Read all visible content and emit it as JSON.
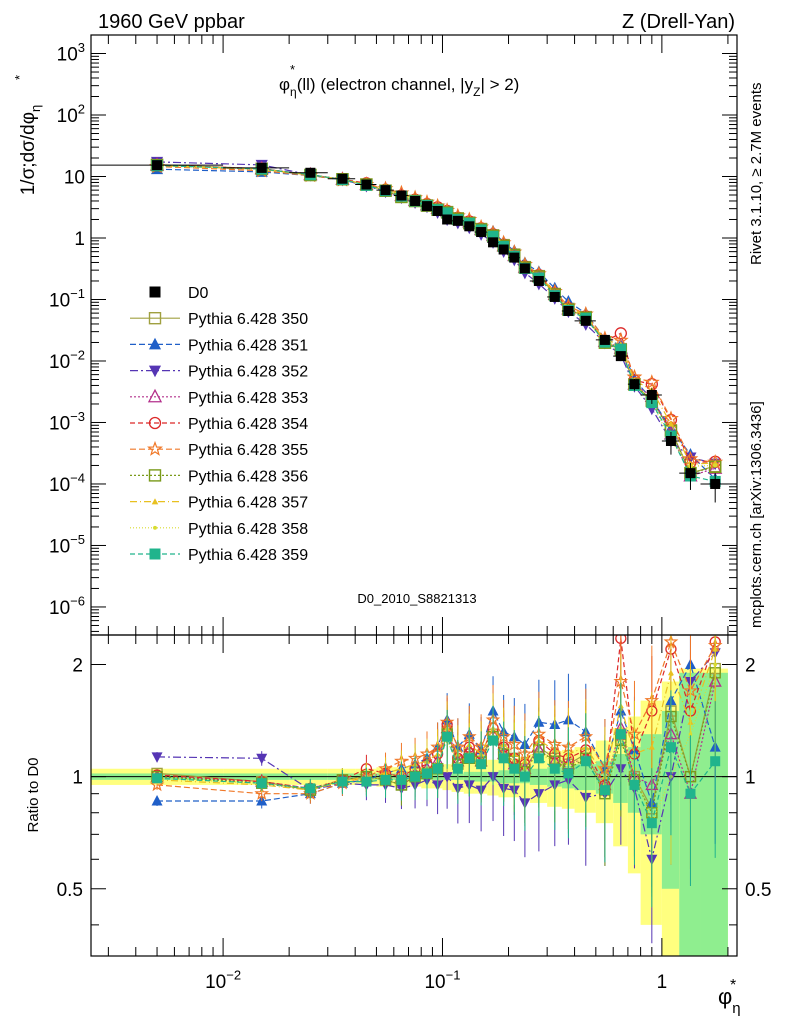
{
  "header": {
    "left": "1960 GeV ppbar",
    "right": "Z (Drell-Yan)"
  },
  "side_labels": {
    "rivet": "Rivet 3.1.10, ≥ 2.7M events",
    "mcplots": "mcplots.cern.ch [arXiv:1306.3436]"
  },
  "chart_data": {
    "type": "scatter",
    "title": "φ*η(ll) (electron channel, |yZ| > 2)",
    "title_parts": {
      "phi": "φ",
      "star": "*",
      "eta": "η",
      "pre": "(ll) (electron channel, |y",
      "z": "Z",
      "post": "| > 2)"
    },
    "analysis_id": "D0_2010_S8821313",
    "xlabel": {
      "phi": "φ",
      "star": "*",
      "eta": "η"
    },
    "ylabel": {
      "main": "1/σ;dσ/dφ",
      "star": "*",
      "eta": "η"
    },
    "ratio_ylabel": "Ratio to D0",
    "x_log": true,
    "y_log": true,
    "xlim": [
      0.0025,
      2.2
    ],
    "ylim": [
      3.5e-07,
      2000
    ],
    "ratio_ylim": [
      0.33,
      2.4
    ],
    "x_ticks": [
      {
        "v": 0.01,
        "base": "10",
        "exp": "−2"
      },
      {
        "v": 0.1,
        "base": "10",
        "exp": "−1"
      },
      {
        "v": 1,
        "base": "1",
        "exp": ""
      }
    ],
    "y_ticks": [
      {
        "v": 1e-06,
        "base": "10",
        "exp": "−6"
      },
      {
        "v": 1e-05,
        "base": "10",
        "exp": "−5"
      },
      {
        "v": 0.0001,
        "base": "10",
        "exp": "−4"
      },
      {
        "v": 0.001,
        "base": "10",
        "exp": "−3"
      },
      {
        "v": 0.01,
        "base": "10",
        "exp": "−2"
      },
      {
        "v": 0.1,
        "base": "10",
        "exp": "−1"
      },
      {
        "v": 1,
        "base": "1",
        "exp": ""
      },
      {
        "v": 10,
        "base": "10",
        "exp": ""
      },
      {
        "v": 100,
        "base": "10",
        "exp": "2"
      },
      {
        "v": 1000,
        "base": "10",
        "exp": "3"
      }
    ],
    "ratio_ticks": [
      {
        "v": 0.5,
        "label": "0.5"
      },
      {
        "v": 1,
        "label": "1"
      },
      {
        "v": 2,
        "label": "2"
      }
    ],
    "bins": [
      0,
      0.01,
      0.02,
      0.03,
      0.04,
      0.05,
      0.06,
      0.07,
      0.08,
      0.09,
      0.1,
      0.11,
      0.125,
      0.14,
      0.16,
      0.18,
      0.2,
      0.225,
      0.25,
      0.3,
      0.35,
      0.4,
      0.5,
      0.6,
      0.7,
      0.8,
      1.0,
      1.2,
      1.5,
      2.0
    ],
    "x": [
      0.005,
      0.015,
      0.025,
      0.035,
      0.045,
      0.055,
      0.065,
      0.075,
      0.085,
      0.095,
      0.105,
      0.1175,
      0.1325,
      0.15,
      0.17,
      0.19,
      0.2125,
      0.2375,
      0.275,
      0.325,
      0.375,
      0.45,
      0.55,
      0.65,
      0.75,
      0.9,
      1.1,
      1.35,
      1.75
    ],
    "data": {
      "name": "D0",
      "color": "#000000",
      "values": [
        15.3,
        13.8,
        11.5,
        9.2,
        7.4,
        6.0,
        4.9,
        4.0,
        3.3,
        2.75,
        2.0,
        1.9,
        1.55,
        1.25,
        0.85,
        0.65,
        0.48,
        0.32,
        0.2,
        0.11,
        0.065,
        0.045,
        0.022,
        0.012,
        0.0042,
        0.0028,
        0.0005,
        0.00015,
        0.0001
      ],
      "errors": [
        0.8,
        0.7,
        0.5,
        0.4,
        0.3,
        0.25,
        0.2,
        0.18,
        0.15,
        0.12,
        0.1,
        0.09,
        0.08,
        0.06,
        0.05,
        0.04,
        0.03,
        0.02,
        0.012,
        0.007,
        0.005,
        0.004,
        0.003,
        0.002,
        0.0009,
        0.0008,
        0.0002,
        7e-05,
        5e-05
      ],
      "band_stat": [
        0.02,
        0.02,
        0.02,
        0.02,
        0.02,
        0.02,
        0.02,
        0.02,
        0.02,
        0.02,
        0.02,
        0.02,
        0.03,
        0.03,
        0.03,
        0.04,
        0.04,
        0.04,
        0.05,
        0.06,
        0.07,
        0.08,
        0.1,
        0.15,
        0.2,
        0.3,
        0.5,
        0.9,
        0.9
      ],
      "band_total": [
        0.05,
        0.05,
        0.05,
        0.05,
        0.05,
        0.06,
        0.06,
        0.06,
        0.07,
        0.07,
        0.08,
        0.09,
        0.1,
        0.1,
        0.11,
        0.12,
        0.12,
        0.13,
        0.15,
        0.17,
        0.18,
        0.2,
        0.25,
        0.35,
        0.45,
        0.6,
        0.8,
        0.95,
        0.95
      ]
    },
    "series": [
      {
        "name": "Pythia 6.428 350",
        "color": "#a0a040",
        "marker": "square-open",
        "dash": "",
        "ratio": [
          1.02,
          0.97,
          0.92,
          0.98,
          1.0,
          0.98,
          0.95,
          1.0,
          1.02,
          1.05,
          1.32,
          1.1,
          1.15,
          1.12,
          1.3,
          1.18,
          1.12,
          1.05,
          1.2,
          1.12,
          1.08,
          1.15,
          0.92,
          1.3,
          1.0,
          0.82,
          1.5,
          1.0,
          1.95
        ]
      },
      {
        "name": "Pythia 6.428 351",
        "color": "#1f5fc8",
        "marker": "triangle-up",
        "dash": "6,3",
        "ratio": [
          0.86,
          0.86,
          0.9,
          0.96,
          0.98,
          1.02,
          1.05,
          1.08,
          1.12,
          1.2,
          1.42,
          1.2,
          1.3,
          1.18,
          1.5,
          1.32,
          1.28,
          1.22,
          1.4,
          1.38,
          1.42,
          1.32,
          1.05,
          1.5,
          1.18,
          0.85,
          1.6,
          2.0,
          1.2
        ]
      },
      {
        "name": "Pythia 6.428 352",
        "color": "#5535b4",
        "marker": "triangle-down",
        "dash": "8,3,2,3",
        "ratio": [
          1.13,
          1.12,
          0.92,
          0.96,
          0.95,
          0.95,
          0.93,
          0.95,
          0.98,
          0.95,
          1.0,
          0.93,
          0.95,
          0.92,
          1.0,
          0.93,
          0.92,
          0.85,
          0.9,
          0.95,
          0.98,
          0.88,
          0.9,
          1.05,
          0.93,
          0.6,
          1.0,
          1.8,
          2.15
        ]
      },
      {
        "name": "Pythia 6.428 353",
        "color": "#b4308c",
        "marker": "triangle-open",
        "dash": "2,2",
        "ratio": [
          1.0,
          0.97,
          0.93,
          0.98,
          1.0,
          1.02,
          1.0,
          1.02,
          1.05,
          1.1,
          1.35,
          1.1,
          1.18,
          1.1,
          1.3,
          1.15,
          1.08,
          1.05,
          1.18,
          1.1,
          1.08,
          1.12,
          0.95,
          1.35,
          1.0,
          0.95,
          1.3,
          0.9,
          1.8
        ]
      },
      {
        "name": "Pythia 6.428 354",
        "color": "#dc2828",
        "marker": "circle-open",
        "dash": "5,3",
        "ratio": [
          1.01,
          0.97,
          0.93,
          0.98,
          1.05,
          1.02,
          1.0,
          1.05,
          1.08,
          1.15,
          1.38,
          1.12,
          1.2,
          1.15,
          1.35,
          1.2,
          1.12,
          1.08,
          1.25,
          1.15,
          1.12,
          1.18,
          0.95,
          2.35,
          1.15,
          1.5,
          2.2,
          1.5,
          2.3
        ]
      },
      {
        "name": "Pythia 6.428 355",
        "color": "#f07828",
        "marker": "star-open",
        "dash": "6,3",
        "ratio": [
          0.95,
          0.9,
          0.9,
          0.96,
          1.0,
          1.05,
          1.1,
          1.12,
          1.15,
          1.2,
          1.4,
          1.2,
          1.28,
          1.2,
          1.42,
          1.28,
          1.22,
          1.15,
          1.3,
          1.22,
          1.2,
          1.28,
          1.05,
          1.8,
          1.3,
          1.6,
          2.3,
          1.7,
          2.25
        ]
      },
      {
        "name": "Pythia 6.428 356",
        "color": "#7a9a1a",
        "marker": "square-open",
        "dash": "2,2",
        "ratio": [
          1.0,
          0.96,
          0.92,
          0.98,
          1.0,
          0.98,
          0.95,
          1.0,
          1.02,
          1.05,
          1.3,
          1.08,
          1.12,
          1.1,
          1.28,
          1.15,
          1.1,
          1.03,
          1.18,
          1.1,
          1.05,
          1.12,
          0.9,
          1.25,
          0.98,
          0.8,
          1.45,
          1.0,
          1.9
        ]
      },
      {
        "name": "Pythia 6.428 357",
        "color": "#e8c020",
        "marker": "tri-small",
        "dash": "7,3,1,3",
        "ratio": [
          0.98,
          0.95,
          0.92,
          0.97,
          1.0,
          1.02,
          1.05,
          1.08,
          1.1,
          1.15,
          1.35,
          1.15,
          1.22,
          1.15,
          1.35,
          1.22,
          1.15,
          1.1,
          1.25,
          1.18,
          1.15,
          1.2,
          1.0,
          1.55,
          1.15,
          1.2,
          1.9,
          1.4,
          2.2
        ]
      },
      {
        "name": "Pythia 6.428 358",
        "color": "#d8dc30",
        "marker": "dot",
        "dash": "1,2",
        "ratio": [
          0.99,
          0.96,
          0.93,
          0.98,
          0.98,
          1.0,
          1.02,
          1.05,
          1.05,
          1.1,
          1.25,
          1.08,
          1.15,
          1.1,
          1.28,
          1.15,
          1.1,
          1.05,
          1.15,
          1.1,
          1.08,
          1.12,
          0.95,
          1.35,
          1.05,
          0.75,
          1.0,
          1.3,
          2.0
        ]
      },
      {
        "name": "Pythia 6.428 359",
        "color": "#20b48c",
        "marker": "square",
        "dash": "5,3",
        "ratio": [
          0.99,
          0.96,
          0.93,
          0.97,
          0.97,
          0.98,
          0.98,
          1.0,
          1.02,
          1.05,
          1.28,
          1.05,
          1.12,
          1.08,
          1.25,
          1.12,
          1.05,
          1.0,
          1.12,
          1.05,
          1.02,
          1.1,
          0.92,
          1.3,
          0.95,
          0.75,
          1.2,
          0.9,
          1.1
        ]
      }
    ]
  }
}
